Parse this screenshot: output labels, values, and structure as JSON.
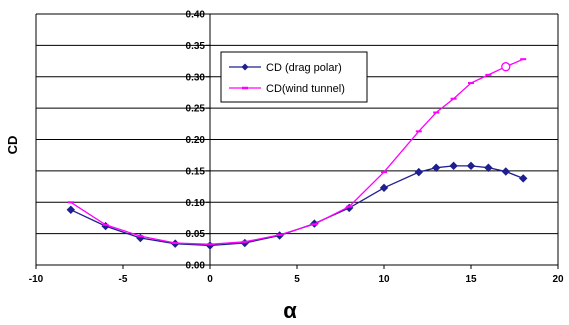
{
  "chart_data": {
    "type": "line",
    "xlabel": "α",
    "ylabel": "CD",
    "xlim": [
      -10,
      20
    ],
    "ylim": [
      0.0,
      0.4
    ],
    "x_ticks": [
      "-10",
      "-5",
      "0",
      "5",
      "10",
      "15",
      "20"
    ],
    "y_ticks": [
      "0.00",
      "0.05",
      "0.10",
      "0.15",
      "0.20",
      "0.25",
      "0.30",
      "0.35",
      "0.40"
    ],
    "grid": "horizontal",
    "legend_position": "top-center",
    "series": [
      {
        "name": "CD (drag polar)",
        "color": "#1f1f8f",
        "marker": "diamond",
        "x": [
          -8,
          -6,
          -4,
          -2,
          0,
          2,
          4,
          6,
          8,
          10,
          12,
          13,
          14,
          15,
          16,
          17,
          18
        ],
        "y": [
          0.088,
          0.062,
          0.043,
          0.034,
          0.031,
          0.035,
          0.047,
          0.066,
          0.091,
          0.123,
          0.148,
          0.155,
          0.158,
          0.158,
          0.155,
          0.149,
          0.138
        ]
      },
      {
        "name": "CD(wind tunnel)",
        "color": "#ff00ff",
        "marker": "dash",
        "x": [
          -8,
          -6,
          -4,
          -2,
          0,
          2,
          4,
          6,
          8,
          10,
          12,
          13,
          14,
          15,
          16,
          17,
          18
        ],
        "y": [
          0.1,
          0.064,
          0.046,
          0.035,
          0.033,
          0.037,
          0.048,
          0.065,
          0.093,
          0.148,
          0.213,
          0.243,
          0.265,
          0.29,
          0.303,
          0.316,
          0.328
        ]
      }
    ]
  }
}
